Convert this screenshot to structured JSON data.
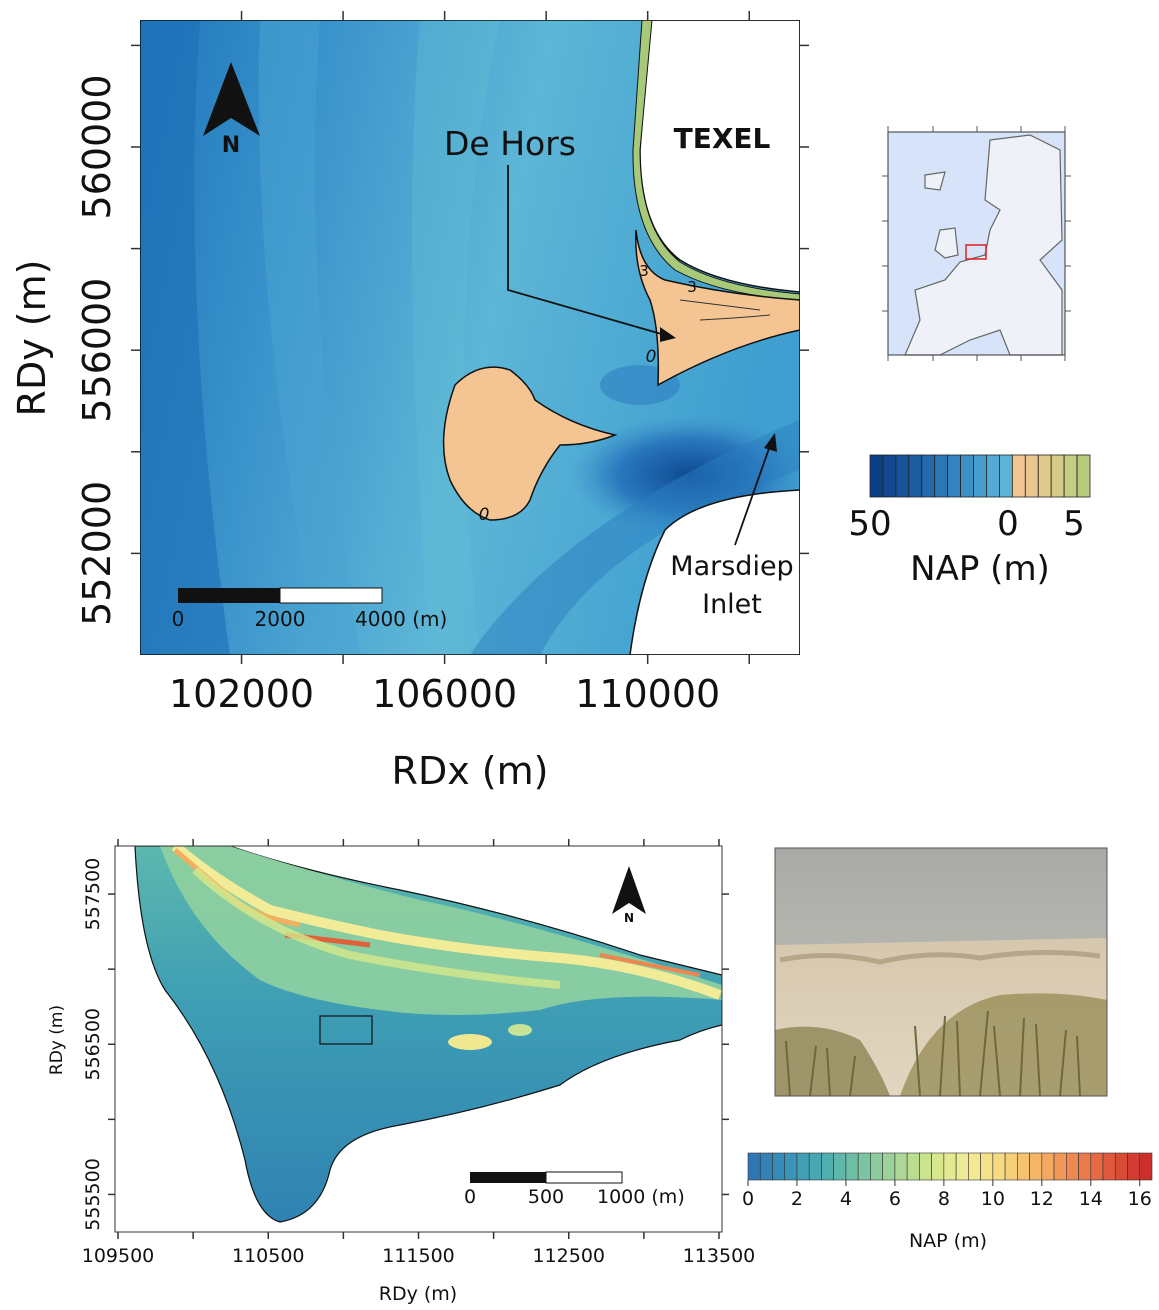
{
  "overview_map": {
    "north_label": "N",
    "place_labels": {
      "de_hors": "De Hors",
      "texel": "TEXEL",
      "marsdiep": [
        "Marsdiep",
        "Inlet"
      ]
    },
    "contour_labels": [
      "0",
      "0",
      "3",
      "3"
    ],
    "scale_bar": [
      "0",
      "2000",
      "4000 (m)"
    ],
    "x_axis": {
      "label": "RDx (m)",
      "lim": [
        100000,
        113000
      ],
      "ticks": [
        102000,
        104000,
        106000,
        108000,
        110000,
        112000
      ],
      "labeled_ticks": [
        102000,
        106000,
        110000
      ]
    },
    "y_axis": {
      "label": "RDy (m)",
      "lim": [
        550000,
        562500
      ],
      "ticks": [
        552000,
        554000,
        556000,
        558000,
        560000,
        562000
      ],
      "labeled_ticks": [
        552000,
        556000,
        560000
      ]
    },
    "colorbar": {
      "label": "NAP (m)",
      "tick_labels": [
        "50",
        "0",
        "5"
      ],
      "colors": [
        "#0b3f85",
        "#11488f",
        "#175399",
        "#1d5ea3",
        "#2469ad",
        "#2b76b7",
        "#3383c0",
        "#3c90c8",
        "#469dcf",
        "#52a9d4",
        "#5eb4d8",
        "#f4c593",
        "#ecc68f",
        "#e1c98b",
        "#d5cb86",
        "#c6cc80",
        "#b6cc7a"
      ]
    }
  },
  "detail_map": {
    "north_label": "N",
    "scale_bar": [
      "0",
      "500",
      "1000 (m)"
    ],
    "x_axis": {
      "label": "RDy (m)",
      "lim": [
        109480,
        113520
      ],
      "ticks": [
        109500,
        110000,
        110500,
        111000,
        111500,
        112000,
        112500,
        113000,
        113500
      ],
      "labeled_ticks": [
        109500,
        110500,
        111500,
        112500,
        113500
      ]
    },
    "y_axis": {
      "label": "RDy (m)",
      "lim": [
        555250,
        557820
      ],
      "ticks": [
        555500,
        556000,
        556500,
        557000,
        557500
      ],
      "labeled_ticks": [
        555500,
        556500,
        557500
      ]
    },
    "colorbar": {
      "label": "NAP (m)",
      "lim": [
        0,
        16.5
      ],
      "ticks": [
        0,
        2,
        4,
        6,
        8,
        10,
        12,
        14,
        16
      ],
      "colors": [
        "#2f77b4",
        "#3a94b8",
        "#4eaeb0",
        "#78c3a3",
        "#a6d596",
        "#d2e68c",
        "#f3ec96",
        "#f6d77f",
        "#f4b466",
        "#ee8650",
        "#e0573d",
        "#cc2f2b"
      ]
    }
  }
}
